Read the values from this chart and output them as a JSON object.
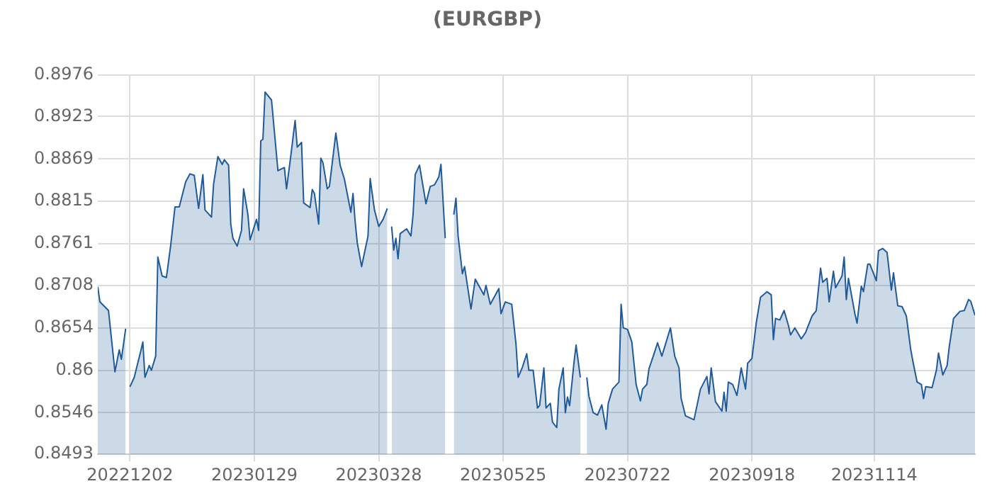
{
  "chart_data": {
    "type": "area",
    "title": "(EURGBP)",
    "x": [
      "2022-11-17",
      "2022-11-18",
      "2022-11-22",
      "2022-11-24",
      "2022-11-25",
      "2022-11-27",
      "2022-11-28",
      "2022-11-30",
      "2022-12-01",
      "2022-12-02",
      "2022-12-04",
      "2022-12-07",
      "2022-12-08",
      "2022-12-09",
      "2022-12-11",
      "2022-12-12",
      "2022-12-14",
      "2022-12-15",
      "2022-12-17",
      "2022-12-19",
      "2022-12-21",
      "2022-12-23",
      "2022-12-25",
      "2022-12-28",
      "2022-12-30",
      "2023-01-01",
      "2023-01-03",
      "2023-01-05",
      "2023-01-06",
      "2023-01-09",
      "2023-01-10",
      "2023-01-12",
      "2023-01-14",
      "2023-01-15",
      "2023-01-17",
      "2023-01-18",
      "2023-01-19",
      "2023-01-21",
      "2023-01-23",
      "2023-01-24",
      "2023-01-26",
      "2023-01-27",
      "2023-01-30",
      "2023-01-31",
      "2023-02-01",
      "2023-02-02",
      "2023-02-03",
      "2023-02-06",
      "2023-02-09",
      "2023-02-12",
      "2023-02-13",
      "2023-02-15",
      "2023-02-17",
      "2023-02-18",
      "2023-02-20",
      "2023-02-21",
      "2023-02-24",
      "2023-02-25",
      "2023-02-26",
      "2023-02-28",
      "2023-03-01",
      "2023-03-02",
      "2023-03-04",
      "2023-03-05",
      "2023-03-08",
      "2023-03-10",
      "2023-03-12",
      "2023-03-15",
      "2023-03-16",
      "2023-03-17",
      "2023-03-18",
      "2023-03-20",
      "2023-03-23",
      "2023-03-24",
      "2023-03-26",
      "2023-03-28",
      "2023-03-30",
      "2023-04-01",
      "2023-04-02",
      "2023-04-03",
      "2023-04-04",
      "2023-04-05",
      "2023-04-06",
      "2023-04-07",
      "2023-04-10",
      "2023-04-12",
      "2023-04-13",
      "2023-04-14",
      "2023-04-16",
      "2023-04-19",
      "2023-04-21",
      "2023-04-23",
      "2023-04-25",
      "2023-04-26",
      "2023-04-28",
      "2023-04-30",
      "2023-05-02",
      "2023-05-03",
      "2023-05-04",
      "2023-05-06",
      "2023-05-07",
      "2023-05-10",
      "2023-05-12",
      "2023-05-16",
      "2023-05-17",
      "2023-05-19",
      "2023-05-23",
      "2023-05-24",
      "2023-05-26",
      "2023-05-29",
      "2023-05-31",
      "2023-06-01",
      "2023-06-03",
      "2023-06-05",
      "2023-06-06",
      "2023-06-08",
      "2023-06-10",
      "2023-06-11",
      "2023-06-13",
      "2023-06-14",
      "2023-06-16",
      "2023-06-17",
      "2023-06-19",
      "2023-06-20",
      "2023-06-22",
      "2023-06-23",
      "2023-06-24",
      "2023-06-25",
      "2023-06-27",
      "2023-06-28",
      "2023-06-30",
      "2023-07-01",
      "2023-07-03",
      "2023-07-04",
      "2023-07-06",
      "2023-07-08",
      "2023-07-10",
      "2023-07-12",
      "2023-07-13",
      "2023-07-15",
      "2023-07-18",
      "2023-07-19",
      "2023-07-20",
      "2023-07-22",
      "2023-07-24",
      "2023-07-26",
      "2023-07-28",
      "2023-07-29",
      "2023-07-31",
      "2023-08-01",
      "2023-08-03",
      "2023-08-05",
      "2023-08-07",
      "2023-08-11",
      "2023-08-13",
      "2023-08-15",
      "2023-08-16",
      "2023-08-18",
      "2023-08-22",
      "2023-08-25",
      "2023-08-28",
      "2023-08-29",
      "2023-08-30",
      "2023-09-01",
      "2023-09-04",
      "2023-09-05",
      "2023-09-06",
      "2023-09-07",
      "2023-09-09",
      "2023-09-11",
      "2023-09-13",
      "2023-09-15",
      "2023-09-16",
      "2023-09-18",
      "2023-09-20",
      "2023-09-22",
      "2023-09-25",
      "2023-09-27",
      "2023-09-28",
      "2023-09-29",
      "2023-10-01",
      "2023-10-03",
      "2023-10-05",
      "2023-10-06",
      "2023-10-08",
      "2023-10-11",
      "2023-10-13",
      "2023-10-16",
      "2023-10-18",
      "2023-10-20",
      "2023-10-21",
      "2023-10-23",
      "2023-10-24",
      "2023-10-26",
      "2023-10-27",
      "2023-10-30",
      "2023-10-31",
      "2023-11-01",
      "2023-11-02",
      "2023-11-05",
      "2023-11-06",
      "2023-11-08",
      "2023-11-09",
      "2023-11-11",
      "2023-11-12",
      "2023-11-15",
      "2023-11-16",
      "2023-11-18",
      "2023-11-20",
      "2023-11-22",
      "2023-11-23",
      "2023-11-25",
      "2023-11-27",
      "2023-11-29",
      "2023-12-01",
      "2023-12-02",
      "2023-12-04",
      "2023-12-06",
      "2023-12-07",
      "2023-12-08",
      "2023-12-11",
      "2023-12-13",
      "2023-12-14",
      "2023-12-16",
      "2023-12-18",
      "2023-12-19",
      "2023-12-21",
      "2023-12-23",
      "2023-12-24",
      "2023-12-26",
      "2023-12-28",
      "2023-12-29",
      "2023-12-31"
    ],
    "series": [
      {
        "color": "#1f5b99",
        "values": [
          0.8706,
          0.8687,
          0.8676,
          0.8624,
          0.8598,
          0.8626,
          0.8614,
          0.8653,
          null,
          0.8579,
          0.8591,
          0.8624,
          0.8636,
          0.8591,
          0.8606,
          0.86,
          0.8618,
          0.8744,
          0.872,
          0.8718,
          0.8759,
          0.8808,
          0.8808,
          0.884,
          0.885,
          0.8848,
          0.8806,
          0.8849,
          0.8804,
          0.8795,
          0.8837,
          0.8872,
          0.8862,
          0.8868,
          0.8861,
          0.8786,
          0.8768,
          0.8758,
          0.8778,
          0.8831,
          0.8798,
          0.8766,
          0.8792,
          0.8778,
          0.8892,
          0.8894,
          0.8954,
          0.8944,
          0.8854,
          0.8858,
          0.8831,
          0.8873,
          0.8918,
          0.8884,
          0.889,
          0.8813,
          0.8807,
          0.883,
          0.8825,
          0.8786,
          0.887,
          0.8864,
          0.8831,
          0.8834,
          0.8902,
          0.8861,
          0.8843,
          0.8801,
          0.8825,
          0.8789,
          0.8762,
          0.8732,
          0.8771,
          0.8844,
          0.8804,
          0.8783,
          0.8792,
          0.8806,
          null,
          0.8783,
          0.8753,
          0.8768,
          0.8742,
          0.8774,
          0.878,
          0.8771,
          0.8798,
          0.8849,
          0.8861,
          0.8812,
          0.8834,
          0.8836,
          0.8846,
          0.8862,
          0.8768,
          null,
          0.8798,
          0.8819,
          0.8771,
          0.8723,
          0.8732,
          0.8678,
          0.8716,
          0.8696,
          0.8708,
          0.8684,
          0.8704,
          0.8672,
          0.8687,
          0.8684,
          0.8633,
          0.8591,
          0.8604,
          0.8621,
          0.86,
          0.86,
          0.8552,
          0.8555,
          0.8603,
          0.8552,
          0.8558,
          0.8534,
          0.8527,
          0.8576,
          0.8603,
          0.8546,
          0.8566,
          0.8555,
          0.8609,
          0.8632,
          0.8591,
          null,
          0.8591,
          0.8567,
          0.8546,
          0.8543,
          0.8556,
          0.8525,
          0.8558,
          0.8576,
          0.8585,
          0.8684,
          0.8654,
          0.8652,
          0.8636,
          0.8582,
          0.8561,
          0.8576,
          0.8582,
          0.8602,
          0.8618,
          0.8635,
          0.8618,
          0.8654,
          0.8618,
          0.8603,
          0.8564,
          0.8542,
          0.8537,
          0.8576,
          0.8592,
          0.857,
          0.8603,
          0.856,
          0.8548,
          0.8572,
          0.8548,
          0.8585,
          0.8582,
          0.8568,
          0.8603,
          0.8576,
          0.8609,
          0.8615,
          0.866,
          0.8693,
          0.87,
          0.8696,
          0.8639,
          0.8666,
          0.8664,
          0.8676,
          0.8657,
          0.8645,
          0.8654,
          0.864,
          0.8648,
          0.8669,
          0.8676,
          0.873,
          0.8712,
          0.8717,
          0.8687,
          0.8726,
          0.8705,
          0.872,
          0.8744,
          0.869,
          0.8717,
          0.8672,
          0.866,
          0.8707,
          0.87,
          0.8735,
          0.8735,
          0.8714,
          0.8752,
          0.8755,
          0.875,
          0.8702,
          0.8724,
          0.8682,
          0.8681,
          0.8669,
          0.8627,
          0.8612,
          0.8585,
          0.8582,
          0.8564,
          0.8579,
          0.8578,
          0.86,
          0.8622,
          0.8594,
          0.8606,
          0.863,
          0.8666,
          0.8672,
          0.8675,
          0.8676,
          0.869,
          0.8688,
          0.867
        ]
      }
    ],
    "xlim": [
      "2022-11-17",
      "2023-12-31"
    ],
    "xticks": [
      {
        "value": "2022-12-02",
        "label": "20221202"
      },
      {
        "value": "2023-01-29",
        "label": "20230129"
      },
      {
        "value": "2023-03-28",
        "label": "20230328"
      },
      {
        "value": "2023-05-25",
        "label": "20230525"
      },
      {
        "value": "2023-07-22",
        "label": "20230722"
      },
      {
        "value": "2023-09-18",
        "label": "20230918"
      },
      {
        "value": "2023-11-14",
        "label": "20231114"
      }
    ],
    "ylim": [
      0.8493,
      0.8976
    ],
    "yticks": [
      0.8493,
      0.8546,
      0.86,
      0.8654,
      0.8708,
      0.8761,
      0.8815,
      0.8869,
      0.8923,
      0.8976
    ],
    "grid": true,
    "legend": false,
    "marker": "none",
    "line_style": "solid"
  }
}
